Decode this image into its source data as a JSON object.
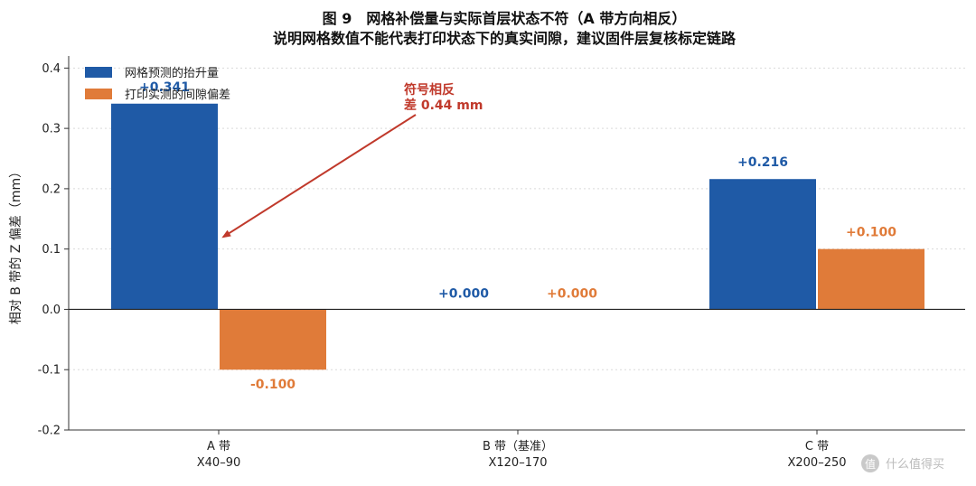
{
  "chart_data": {
    "type": "bar",
    "title": "图 9　网格补偿量与实际首层状态不符（A 带方向相反）",
    "subtitle": "说明网格数值不能代表打印状态下的真实间隙，建议固件层复核标定链路",
    "xlabel": "",
    "ylabel": "相对 B 带的 Z 偏差（mm）",
    "ylim": [
      -0.2,
      0.42
    ],
    "yticks": [
      "-0.2",
      "-0.1",
      "0.0",
      "0.1",
      "0.2",
      "0.3",
      "0.4"
    ],
    "ytick_values": [
      -0.2,
      -0.1,
      0.0,
      0.1,
      0.2,
      0.3,
      0.4
    ],
    "grid": true,
    "legend_position": "top-left",
    "categories": [
      {
        "name": "A 带",
        "range": "X40–90"
      },
      {
        "name": "B 带（基准）",
        "range": "X120–170"
      },
      {
        "name": "C 带",
        "range": "X200–250"
      }
    ],
    "series": [
      {
        "name": "网格预测的抬升量",
        "color": "#1f5aa6",
        "values": [
          0.341,
          0.0,
          0.216
        ],
        "labels": [
          "+0.341",
          "+0.000",
          "+0.216"
        ]
      },
      {
        "name": "打印实测的间隙偏差",
        "color": "#e07b39",
        "values": [
          -0.1,
          0.0,
          0.1
        ],
        "labels": [
          "-0.100",
          "+0.000",
          "+0.100"
        ]
      }
    ],
    "annotation": {
      "lines": [
        "符号相反",
        "差 0.44 mm"
      ],
      "color": "#c0392b"
    }
  },
  "watermark": {
    "icon": "值",
    "text": "什么值得买"
  }
}
